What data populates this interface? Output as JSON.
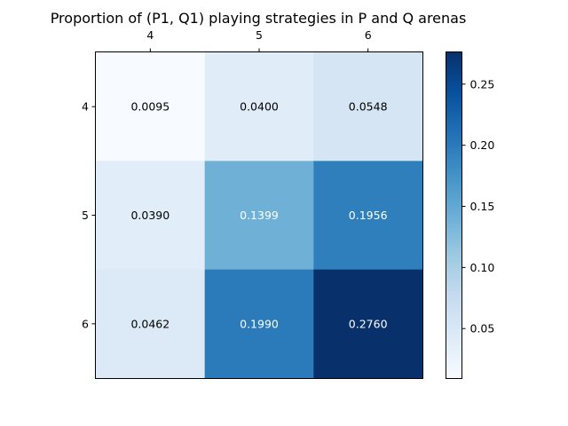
{
  "chart_data": {
    "type": "heatmap",
    "title": "Proportion of (P1, Q1) playing strategies in P and Q arenas",
    "x_categories": [
      "4",
      "5",
      "6"
    ],
    "y_categories": [
      "4",
      "5",
      "6"
    ],
    "values": [
      [
        0.0095,
        0.04,
        0.0548
      ],
      [
        0.039,
        0.1399,
        0.1956
      ],
      [
        0.0462,
        0.199,
        0.276
      ]
    ],
    "value_labels": [
      [
        "0.0095",
        "0.0400",
        "0.0548"
      ],
      [
        "0.0390",
        "0.1399",
        "0.1956"
      ],
      [
        "0.0462",
        "0.1990",
        "0.2760"
      ]
    ],
    "colormap": "Blues",
    "color_range": [
      0.0095,
      0.276
    ],
    "colorbar_ticks": [
      0.05,
      0.1,
      0.15,
      0.2,
      0.25
    ],
    "colorbar_tick_labels": [
      "0.05",
      "0.10",
      "0.15",
      "0.20",
      "0.25"
    ],
    "x_ticks_position": "top",
    "grid": false
  }
}
